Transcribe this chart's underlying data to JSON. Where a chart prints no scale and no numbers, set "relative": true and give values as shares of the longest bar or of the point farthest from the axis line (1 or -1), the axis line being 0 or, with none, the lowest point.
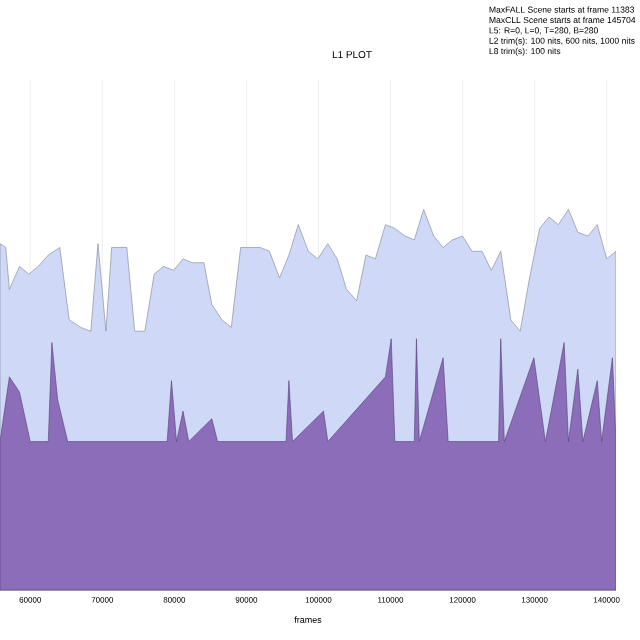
{
  "chart_data": {
    "type": "area",
    "title": "L1 PLOT",
    "xlabel": "frames",
    "relative": true,
    "grid": "x",
    "xlim": [
      55800,
      141300
    ],
    "xticks": [
      60000,
      70000,
      80000,
      90000,
      100000,
      110000,
      120000,
      130000,
      140000
    ],
    "annotations": [
      "MaxFALL Scene starts at frame 11383",
      "MaxCLL Scene starts at frame 145704",
      "L5: R=0, L=0, T=280, B=280",
      "L2 trim(s): 100 nits, 600 nits, 1000 nits",
      "L8 trim(s): 100 nits"
    ],
    "series": [
      {
        "color": "#cfd8f6",
        "x": [
          55800,
          56600,
          57100,
          58500,
          59800,
          61100,
          62500,
          64100,
          65400,
          67000,
          68400,
          69400,
          70500,
          71300,
          72400,
          73400,
          74500,
          75900,
          77200,
          78500,
          79900,
          81200,
          82500,
          84100,
          85200,
          86600,
          87900,
          89200,
          90600,
          91900,
          93200,
          94600,
          95900,
          97200,
          98600,
          99900,
          101300,
          102600,
          103900,
          105300,
          106600,
          107900,
          109300,
          110600,
          112000,
          113300,
          114600,
          116000,
          117300,
          118600,
          120000,
          121300,
          122700,
          124000,
          125300,
          126700,
          128000,
          129300,
          130700,
          132000,
          133300,
          134700,
          136000,
          137400,
          138700,
          140000,
          141300
        ],
        "values": [
          0.91,
          0.9,
          0.79,
          0.85,
          0.83,
          0.85,
          0.88,
          0.9,
          0.71,
          0.69,
          0.68,
          0.91,
          0.68,
          0.9,
          0.9,
          0.9,
          0.68,
          0.68,
          0.83,
          0.85,
          0.84,
          0.87,
          0.86,
          0.86,
          0.75,
          0.71,
          0.69,
          0.9,
          0.9,
          0.9,
          0.89,
          0.82,
          0.88,
          0.96,
          0.89,
          0.87,
          0.91,
          0.87,
          0.79,
          0.76,
          0.88,
          0.87,
          0.96,
          0.95,
          0.93,
          0.92,
          1,
          0.93,
          0.9,
          0.92,
          0.93,
          0.89,
          0.89,
          0.84,
          0.89,
          0.71,
          0.68,
          0.82,
          0.95,
          0.98,
          0.96,
          1,
          0.94,
          0.93,
          0.96,
          0.87,
          0.89
        ]
      },
      {
        "color": "#8b6dba",
        "x": [
          55800,
          57100,
          58500,
          60000,
          62500,
          63000,
          63800,
          65200,
          79000,
          79600,
          80300,
          81200,
          82000,
          85200,
          86000,
          95500,
          95900,
          96400,
          100700,
          101300,
          109300,
          110100,
          110600,
          113300,
          113600,
          114000,
          117300,
          118000,
          125000,
          125300,
          125800,
          129900,
          130700,
          131500,
          134100,
          134700,
          136000,
          136700,
          138700,
          139300,
          140800,
          141300
        ],
        "values": [
          0.39,
          0.56,
          0.52,
          0.39,
          0.39,
          0.65,
          0.5,
          0.39,
          0.39,
          0.55,
          0.39,
          0.47,
          0.39,
          0.45,
          0.39,
          0.39,
          0.55,
          0.39,
          0.47,
          0.39,
          0.56,
          0.66,
          0.39,
          0.39,
          0.66,
          0.39,
          0.61,
          0.39,
          0.39,
          0.66,
          0.39,
          0.61,
          0.5,
          0.39,
          0.65,
          0.39,
          0.58,
          0.39,
          0.55,
          0.39,
          0.61,
          0.39
        ]
      }
    ]
  }
}
